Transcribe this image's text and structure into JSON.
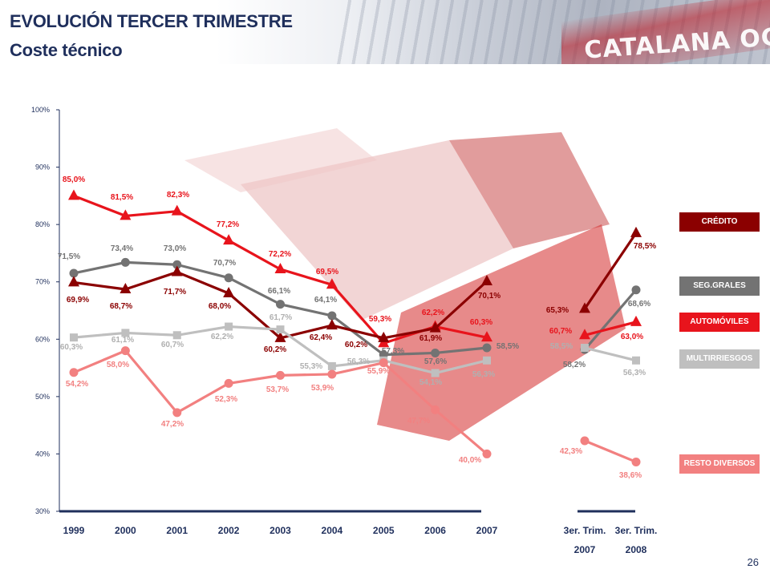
{
  "header": {
    "title": "EVOLUCIÓN TERCER TRIMESTRE",
    "subtitle": "Coste técnico",
    "logo_text": "CATALANA OCCIDENTE"
  },
  "page_number": "26",
  "legend": [
    {
      "label": "CRÉDITO",
      "color": "#8b0000"
    },
    {
      "label": "SEG.GRALES",
      "color": "#737373"
    },
    {
      "label": "AUTOMÓVILES",
      "color": "#e8141c"
    },
    {
      "label": "MULTIRRIESGOS",
      "color": "#bfbfbf"
    },
    {
      "label": "RESTO DIVERSOS",
      "color": "#f28080"
    }
  ],
  "chart_data": {
    "type": "line",
    "title": "Coste técnico",
    "ylim": [
      30,
      100
    ],
    "y_ticks": [
      "30%",
      "40%",
      "50%",
      "60%",
      "70%",
      "80%",
      "90%",
      "100%"
    ],
    "annual": {
      "categories": [
        "1999",
        "2000",
        "2001",
        "2002",
        "2003",
        "2004",
        "2005",
        "2006",
        "2007"
      ],
      "series": [
        {
          "name": "AUTOMÓVILES",
          "color": "#e8141c",
          "marker": "triangle",
          "labels": [
            "85,0%",
            "81,5%",
            "82,3%",
            "77,2%",
            "72,2%",
            "69,5%",
            "59,3%",
            "62,2%",
            "60,3%"
          ],
          "values": [
            85.0,
            81.5,
            82.3,
            77.2,
            72.2,
            69.5,
            59.3,
            62.2,
            60.3
          ]
        },
        {
          "name": "SEG.GRALES",
          "color": "#737373",
          "marker": "circle",
          "labels": [
            "71,5%",
            "73,4%",
            "73,0%",
            "70,7%",
            "66,1%",
            "64,1%",
            "57,3%",
            "57,6%",
            "58,5%"
          ],
          "values": [
            71.5,
            73.4,
            73.0,
            70.7,
            66.1,
            64.1,
            57.3,
            57.6,
            58.5
          ]
        },
        {
          "name": "CRÉDITO",
          "color": "#8b0000",
          "marker": "triangle",
          "labels": [
            "69,9%",
            "68,7%",
            "71,7%",
            "68,0%",
            "60,2%",
            "62,4%",
            "60,2%",
            "61,9%",
            "70,1%"
          ],
          "values": [
            69.9,
            68.7,
            71.7,
            68.0,
            60.2,
            62.4,
            60.2,
            61.9,
            70.1
          ]
        },
        {
          "name": "MULTIRRIESGOS",
          "color": "#bfbfbf",
          "marker": "square",
          "labels": [
            "60,3%",
            "61,1%",
            "60,7%",
            "62,2%",
            "61,7%",
            "55,3%",
            "56,3%",
            "54,1%",
            "56,3%"
          ],
          "values": [
            60.3,
            61.1,
            60.7,
            62.2,
            61.7,
            55.3,
            56.3,
            54.1,
            56.3
          ]
        },
        {
          "name": "RESTO DIVERSOS",
          "color": "#f28080",
          "marker": "circle",
          "labels": [
            "54,2%",
            "58,0%",
            "47,2%",
            "52,3%",
            "53,7%",
            "53,9%",
            "55,9%",
            "47,7%",
            "40,0%"
          ],
          "values": [
            54.2,
            58.0,
            47.2,
            52.3,
            53.7,
            53.9,
            55.9,
            47.7,
            40.0
          ]
        }
      ]
    },
    "quarterly": {
      "categories": [
        [
          "3er. Trim.",
          "2007"
        ],
        [
          "3er. Trim.",
          "2008"
        ]
      ],
      "series": [
        {
          "name": "CRÉDITO",
          "color": "#8b0000",
          "marker": "triangle",
          "labels": [
            "65,3%",
            "78,5%"
          ],
          "values": [
            65.3,
            78.5
          ]
        },
        {
          "name": "SEG.GRALES",
          "color": "#737373",
          "marker": "circle",
          "labels": [
            "58,2%",
            "68,6%"
          ],
          "values": [
            58.2,
            68.6
          ]
        },
        {
          "name": "AUTOMÓVILES",
          "color": "#e8141c",
          "marker": "triangle",
          "labels": [
            "60,7%",
            "63,0%"
          ],
          "values": [
            60.7,
            63.0
          ]
        },
        {
          "name": "MULTIRRIESGOS",
          "color": "#bfbfbf",
          "marker": "square",
          "labels": [
            "58,5%",
            "56,3%"
          ],
          "values": [
            58.5,
            56.3
          ]
        },
        {
          "name": "RESTO DIVERSOS",
          "color": "#f28080",
          "marker": "circle",
          "labels": [
            "42,3%",
            "38,6%"
          ],
          "values": [
            42.3,
            38.6
          ]
        }
      ]
    },
    "legend_position": "right"
  }
}
